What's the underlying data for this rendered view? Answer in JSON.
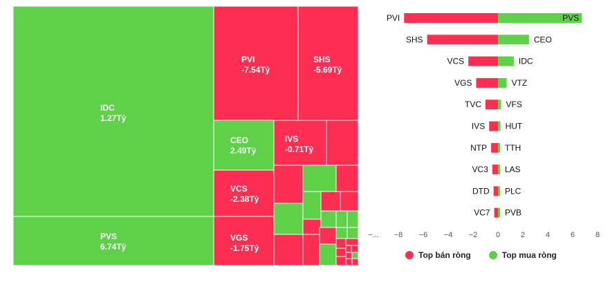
{
  "colors": {
    "sell": "#fe2d52",
    "buy": "#5fd148"
  },
  "chart_data": [
    {
      "type": "treemap",
      "cells": [
        {
          "name": "IDC",
          "value_label": "1.27Tỷ",
          "side": "buy"
        },
        {
          "name": "PVS",
          "value_label": "6.74Tỷ",
          "side": "buy"
        },
        {
          "name": "PVI",
          "value_label": "-7.54Tỷ",
          "side": "sell"
        },
        {
          "name": "SHS",
          "value_label": "-5.69Tỷ",
          "side": "sell"
        },
        {
          "name": "CEO",
          "value_label": "2.49Tỷ",
          "side": "buy"
        },
        {
          "name": "IVS",
          "value_label": "-0.71Tỷ",
          "side": "sell"
        },
        {
          "name": "VCS",
          "value_label": "-2.38Tỷ",
          "side": "sell"
        },
        {
          "name": "VGS",
          "value_label": "-1.75Tỷ",
          "side": "sell"
        }
      ]
    },
    {
      "type": "bar",
      "orientation": "horizontal-diverging",
      "sell_tickers": [
        "PVI",
        "SHS",
        "VCS",
        "VGS",
        "TVC",
        "IVS",
        "NTP",
        "VC3",
        "DTD",
        "VC7"
      ],
      "sell_values": [
        -7.54,
        -5.69,
        -2.38,
        -1.75,
        -1.0,
        -0.71,
        -0.55,
        -0.45,
        -0.35,
        -0.3
      ],
      "buy_tickers": [
        "PVS",
        "CEO",
        "IDC",
        "VTZ",
        "VFS",
        "HUT",
        "TTH",
        "LAS",
        "PLC",
        "PVB"
      ],
      "buy_values": [
        6.74,
        2.49,
        1.27,
        0.7,
        0.25,
        0.2,
        0.15,
        0.12,
        0.1,
        0.08
      ],
      "xticks": [
        "−...",
        "−8",
        "−6",
        "−4",
        "−2",
        "0",
        "2",
        "4",
        "6",
        "8"
      ],
      "xlim": [
        -10,
        8
      ],
      "legend": [
        "Top bán ròng",
        "Top mua ròng"
      ],
      "legend_position": "bottom"
    }
  ]
}
